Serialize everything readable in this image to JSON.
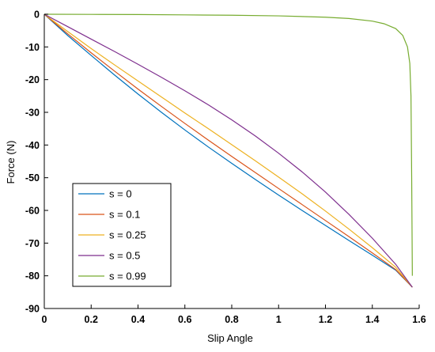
{
  "chart_data": {
    "type": "line",
    "title": "",
    "xlabel": "Slip Angle",
    "ylabel": "Force (N)",
    "xlim": [
      0,
      1.6
    ],
    "ylim": [
      -90,
      0
    ],
    "xticks": [
      0,
      0.2,
      0.4,
      0.6,
      0.8,
      1,
      1.2,
      1.4,
      1.6
    ],
    "xtick_labels": [
      "0",
      "0.2",
      "0.4",
      "0.6",
      "0.8",
      "1",
      "1.2",
      "1.4",
      "1.6"
    ],
    "yticks": [
      0,
      -10,
      -20,
      -30,
      -40,
      -50,
      -60,
      -70,
      -80,
      -90
    ],
    "ytick_labels": [
      "0",
      "-10",
      "-20",
      "-30",
      "-40",
      "-50",
      "-60",
      "-70",
      "-80",
      "-90"
    ],
    "grid": false,
    "legend_position": "lower-left",
    "series": [
      {
        "name": "s = 0",
        "color": "#0072BD",
        "x": [
          0,
          0.1,
          0.2,
          0.3,
          0.4,
          0.5,
          0.6,
          0.7,
          0.8,
          0.9,
          1.0,
          1.1,
          1.2,
          1.3,
          1.4,
          1.5,
          1.5708
        ],
        "y": [
          0,
          -6.5,
          -12.6,
          -18.6,
          -24.4,
          -30.0,
          -35.4,
          -40.6,
          -45.6,
          -50.5,
          -55.3,
          -60.0,
          -64.6,
          -69.2,
          -73.7,
          -78.3,
          -83.5
        ]
      },
      {
        "name": "s = 0.1",
        "color": "#D95319",
        "x": [
          0,
          0.1,
          0.2,
          0.3,
          0.4,
          0.5,
          0.6,
          0.7,
          0.8,
          0.9,
          1.0,
          1.1,
          1.2,
          1.3,
          1.4,
          1.5,
          1.5708
        ],
        "y": [
          0,
          -6.0,
          -11.8,
          -17.4,
          -22.9,
          -28.2,
          -33.4,
          -38.5,
          -43.5,
          -48.4,
          -53.3,
          -58.2,
          -63.1,
          -68.0,
          -73.0,
          -78.1,
          -83.5
        ]
      },
      {
        "name": "s = 0.25",
        "color": "#EDB120",
        "x": [
          0,
          0.1,
          0.2,
          0.3,
          0.4,
          0.5,
          0.6,
          0.7,
          0.8,
          0.9,
          1.0,
          1.1,
          1.2,
          1.3,
          1.4,
          1.5,
          1.5708
        ],
        "y": [
          0,
          -5.3,
          -10.5,
          -15.5,
          -20.4,
          -25.3,
          -30.2,
          -35.0,
          -39.9,
          -44.8,
          -49.8,
          -54.9,
          -60.2,
          -65.7,
          -71.4,
          -77.4,
          -83.5
        ]
      },
      {
        "name": "s = 0.5",
        "color": "#7E2F8E",
        "x": [
          0,
          0.1,
          0.2,
          0.3,
          0.4,
          0.5,
          0.6,
          0.7,
          0.8,
          0.9,
          1.0,
          1.1,
          1.2,
          1.3,
          1.4,
          1.5,
          1.5708
        ],
        "y": [
          0,
          -3.8,
          -7.6,
          -11.4,
          -15.3,
          -19.3,
          -23.4,
          -27.7,
          -32.3,
          -37.2,
          -42.5,
          -48.2,
          -54.4,
          -61.2,
          -68.5,
          -76.5,
          -83.5
        ]
      },
      {
        "name": "s = 0.99",
        "color": "#77AC30",
        "x": [
          0,
          0.2,
          0.4,
          0.6,
          0.8,
          1.0,
          1.2,
          1.3,
          1.4,
          1.45,
          1.5,
          1.53,
          1.55,
          1.56,
          1.565,
          1.568,
          1.5708
        ],
        "y": [
          0,
          -0.05,
          -0.1,
          -0.2,
          -0.3,
          -0.5,
          -0.9,
          -1.3,
          -2.1,
          -2.9,
          -4.4,
          -6.5,
          -10.0,
          -15.0,
          -25.0,
          -50.0,
          -80.0
        ]
      }
    ]
  }
}
